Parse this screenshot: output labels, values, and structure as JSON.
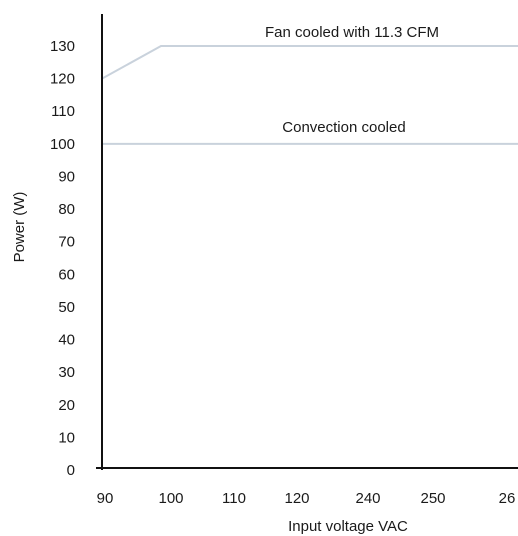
{
  "chart_data": {
    "type": "line",
    "title": "",
    "xlabel": "Input voltage VAC",
    "ylabel": "Power (W)",
    "x_tick_labels": [
      "90",
      "100",
      "110",
      "120",
      "240",
      "250",
      "26"
    ],
    "y_ticks": [
      0,
      10,
      20,
      30,
      40,
      50,
      60,
      70,
      80,
      90,
      100,
      110,
      120,
      130
    ],
    "ylim": [
      0,
      130
    ],
    "grid": false,
    "series": [
      {
        "name": "Fan cooled with 11.3 CFM",
        "color": "#c9d2dc",
        "points": [
          {
            "x": "90",
            "y": 120
          },
          {
            "x": "100",
            "y": 130
          },
          {
            "x": "26",
            "y": 130
          }
        ]
      },
      {
        "name": "Convection cooled",
        "color": "#c9d2dc",
        "points": [
          {
            "x": "90",
            "y": 100
          },
          {
            "x": "26",
            "y": 100
          }
        ]
      }
    ]
  }
}
